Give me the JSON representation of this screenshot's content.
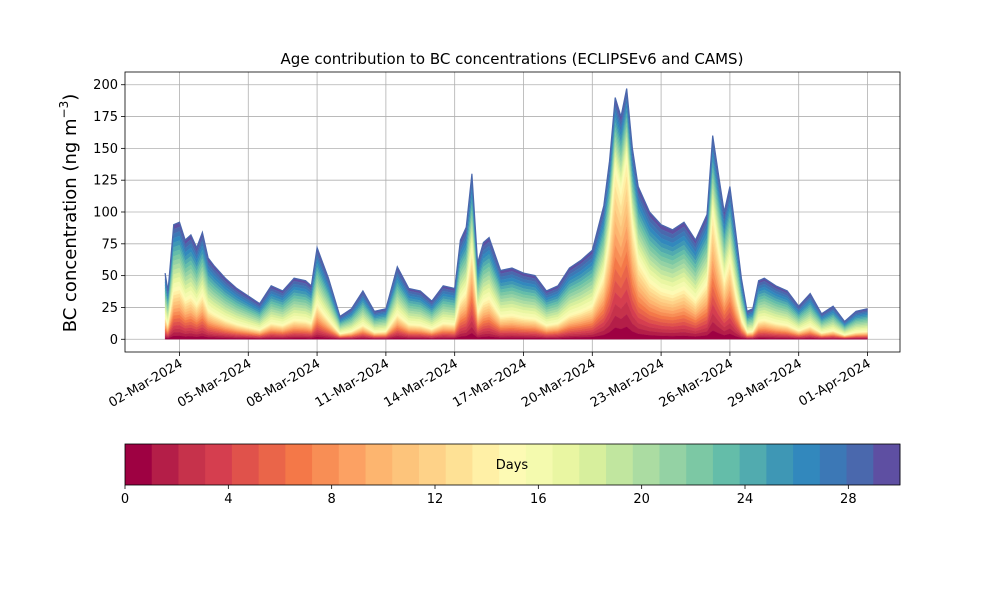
{
  "chart_data": {
    "type": "area",
    "title": "Age contribution to BC concentrations (ECLIPSEv6 and CAMS)",
    "ylabel": "BC concentration (ng m",
    "ylabel_sup": "−3",
    "ylabel_tail": ")",
    "xlabel": "",
    "ylim": [
      -10,
      210
    ],
    "xlim": [
      "2024-02-28T15:00",
      "2024-04-02T10:00"
    ],
    "yticks": [
      0,
      25,
      50,
      75,
      100,
      125,
      150,
      175,
      200
    ],
    "xticks": [
      {
        "date": "2024-03-02",
        "label": "02-Mar-2024"
      },
      {
        "date": "2024-03-05",
        "label": "05-Mar-2024"
      },
      {
        "date": "2024-03-08",
        "label": "08-Mar-2024"
      },
      {
        "date": "2024-03-11",
        "label": "11-Mar-2024"
      },
      {
        "date": "2024-03-14",
        "label": "14-Mar-2024"
      },
      {
        "date": "2024-03-17",
        "label": "17-Mar-2024"
      },
      {
        "date": "2024-03-20",
        "label": "20-Mar-2024"
      },
      {
        "date": "2024-03-23",
        "label": "23-Mar-2024"
      },
      {
        "date": "2024-03-26",
        "label": "26-Mar-2024"
      },
      {
        "date": "2024-03-29",
        "label": "29-Mar-2024"
      },
      {
        "date": "2024-04-01",
        "label": "01-Apr-2024"
      }
    ],
    "grid": true,
    "total": {
      "dates": [
        "2024-03-01T09:00",
        "2024-03-01T12:00",
        "2024-03-01T18:00",
        "2024-03-02T00:00",
        "2024-03-02T06:00",
        "2024-03-02T12:00",
        "2024-03-02T18:00",
        "2024-03-03T00:00",
        "2024-03-03T06:00",
        "2024-03-03T12:00",
        "2024-03-04T00:00",
        "2024-03-04T12:00",
        "2024-03-05T00:00",
        "2024-03-05T12:00",
        "2024-03-06T00:00",
        "2024-03-06T12:00",
        "2024-03-07T00:00",
        "2024-03-07T12:00",
        "2024-03-07T18:00",
        "2024-03-08T00:00",
        "2024-03-08T06:00",
        "2024-03-08T12:00",
        "2024-03-09T00:00",
        "2024-03-09T12:00",
        "2024-03-10T00:00",
        "2024-03-10T12:00",
        "2024-03-11T00:00",
        "2024-03-11T12:00",
        "2024-03-12T00:00",
        "2024-03-12T12:00",
        "2024-03-13T00:00",
        "2024-03-13T12:00",
        "2024-03-14T00:00",
        "2024-03-14T06:00",
        "2024-03-14T12:00",
        "2024-03-14T18:00",
        "2024-03-15T00:00",
        "2024-03-15T06:00",
        "2024-03-15T12:00",
        "2024-03-16T00:00",
        "2024-03-16T12:00",
        "2024-03-17T00:00",
        "2024-03-17T12:00",
        "2024-03-18T00:00",
        "2024-03-18T12:00",
        "2024-03-19T00:00",
        "2024-03-19T12:00",
        "2024-03-20T00:00",
        "2024-03-20T12:00",
        "2024-03-20T18:00",
        "2024-03-21T00:00",
        "2024-03-21T06:00",
        "2024-03-21T12:00",
        "2024-03-21T18:00",
        "2024-03-22T00:00",
        "2024-03-22T12:00",
        "2024-03-23T00:00",
        "2024-03-23T12:00",
        "2024-03-24T00:00",
        "2024-03-24T12:00",
        "2024-03-25T00:00",
        "2024-03-25T06:00",
        "2024-03-25T12:00",
        "2024-03-25T18:00",
        "2024-03-26T00:00",
        "2024-03-26T06:00",
        "2024-03-26T12:00",
        "2024-03-26T18:00",
        "2024-03-27T00:00",
        "2024-03-27T06:00",
        "2024-03-27T12:00",
        "2024-03-28T00:00",
        "2024-03-28T12:00",
        "2024-03-29T00:00",
        "2024-03-29T12:00",
        "2024-03-30T00:00",
        "2024-03-30T12:00",
        "2024-03-31T00:00",
        "2024-03-31T12:00",
        "2024-04-01T00:00"
      ],
      "values": [
        52,
        38,
        90,
        92,
        78,
        82,
        72,
        84,
        64,
        58,
        48,
        40,
        34,
        28,
        42,
        38,
        48,
        46,
        42,
        72,
        60,
        48,
        18,
        24,
        38,
        22,
        24,
        57,
        40,
        38,
        30,
        42,
        40,
        78,
        88,
        130,
        60,
        76,
        80,
        54,
        56,
        52,
        50,
        38,
        42,
        56,
        62,
        70,
        105,
        140,
        190,
        175,
        197,
        150,
        120,
        100,
        90,
        86,
        92,
        78,
        98,
        160,
        130,
        100,
        120,
        85,
        48,
        22,
        24,
        46,
        48,
        42,
        38,
        26,
        36,
        20,
        26,
        14,
        22,
        24
      ]
    },
    "colorbar": {
      "label": "Days",
      "range": [
        0,
        30
      ],
      "ticks": [
        0,
        4,
        8,
        12,
        16,
        20,
        24,
        28
      ],
      "colors": [
        "#9e0142",
        "#b41e48",
        "#c6324b",
        "#d53e4f",
        "#e0524b",
        "#ea6549",
        "#f47848",
        "#f88e55",
        "#fca163",
        "#fdb56f",
        "#fdc47b",
        "#fed288",
        "#fee195",
        "#fff0a6",
        "#fdfab4",
        "#f4faae",
        "#e9f6a2",
        "#d7ef9d",
        "#c1e69f",
        "#abdca2",
        "#94d2a4",
        "#7cc8a4",
        "#64bda9",
        "#51abaf",
        "#3e97b5",
        "#3288bd",
        "#3c78b6",
        "#4a68ad",
        "#5e4fa2"
      ]
    }
  }
}
